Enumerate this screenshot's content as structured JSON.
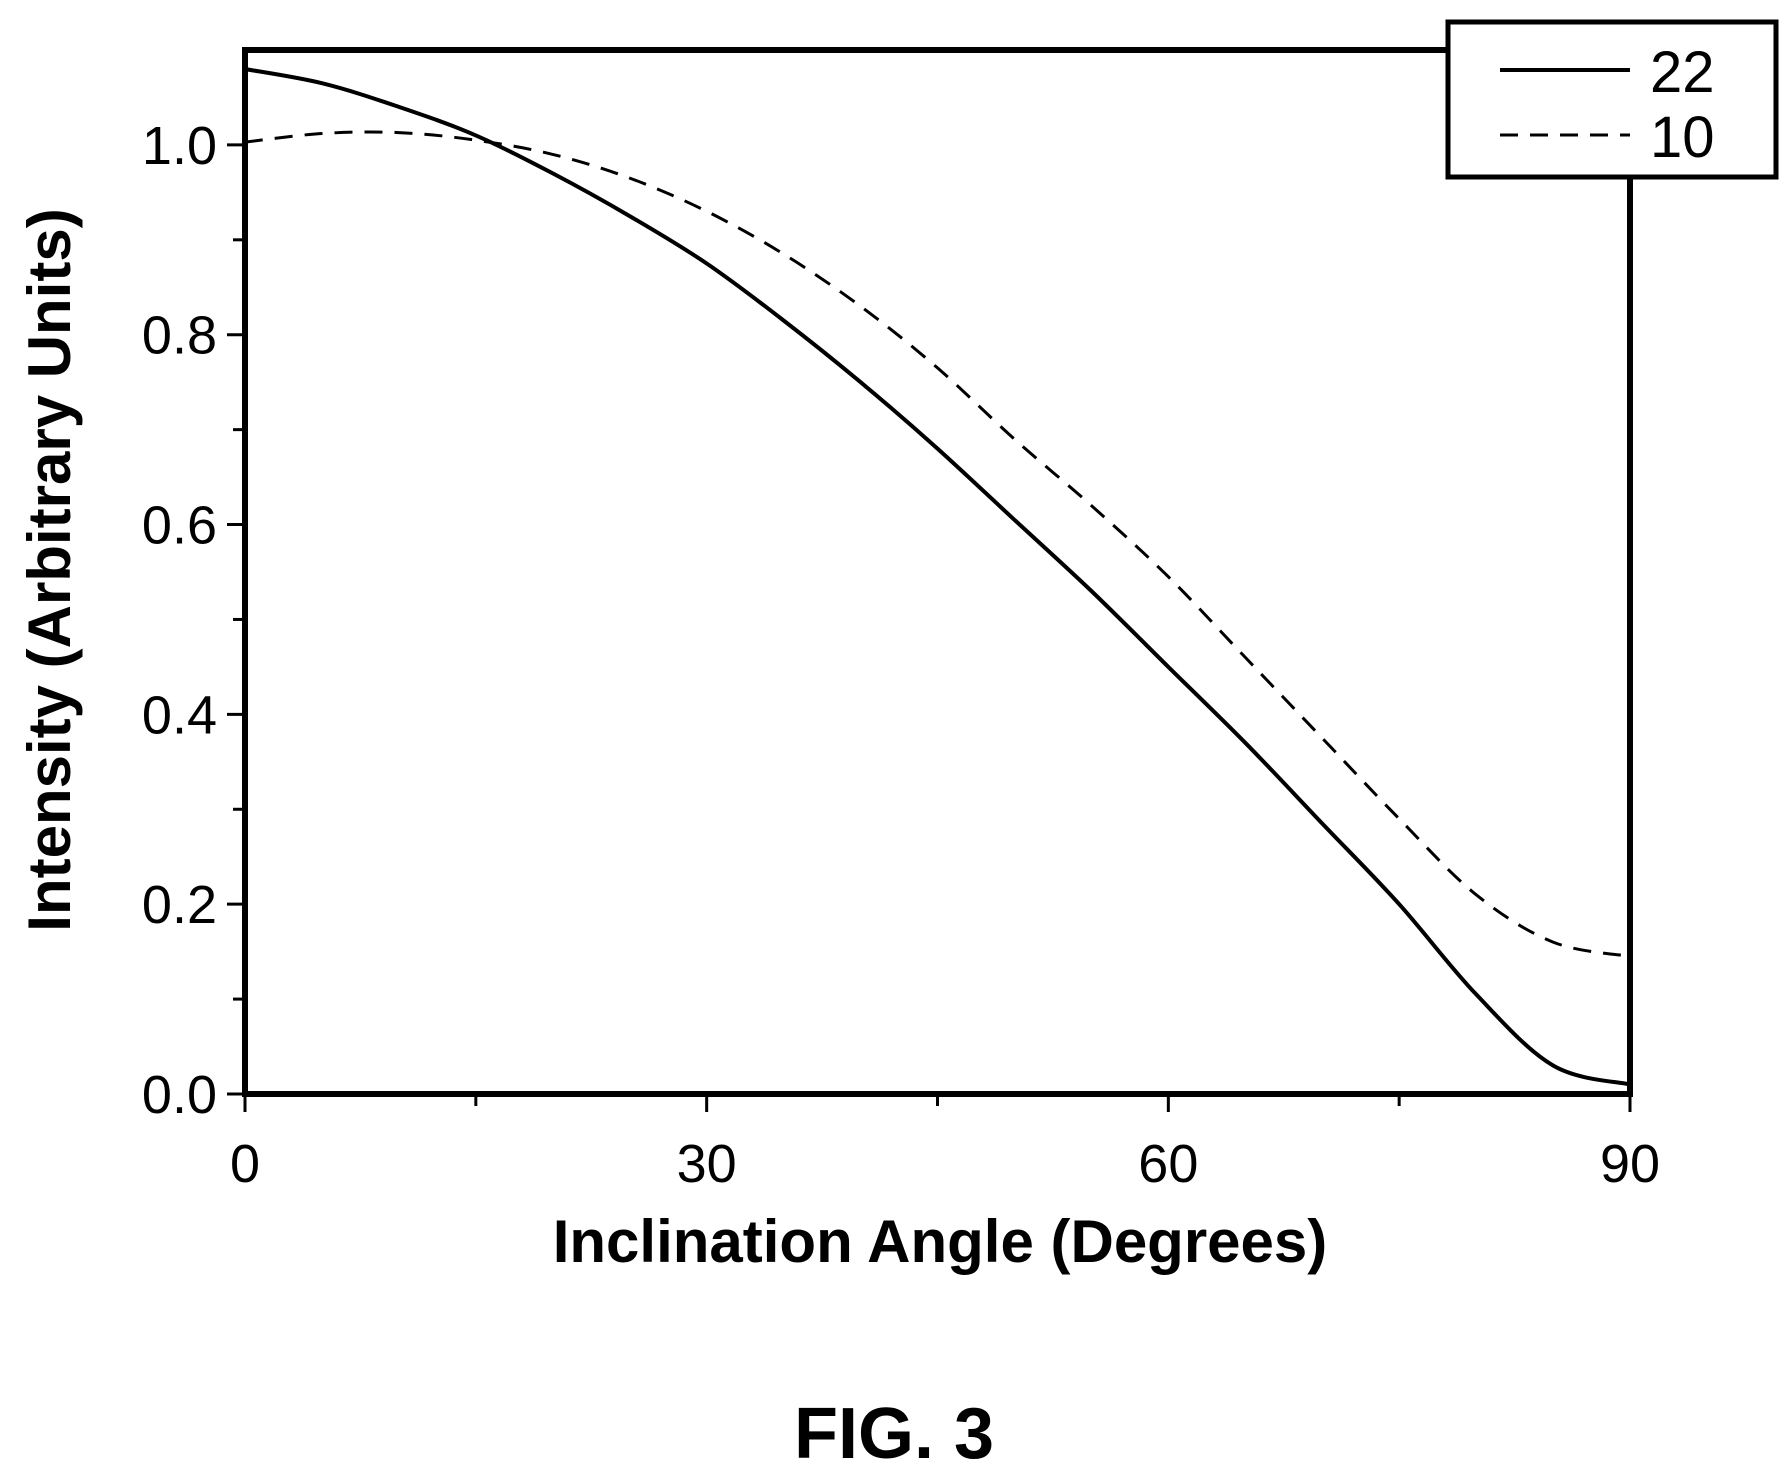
{
  "chart_data": {
    "type": "line",
    "title": "",
    "xlabel": "Inclination Angle (Degrees)",
    "ylabel": "Intensity (Arbitrary Units)",
    "xlim": [
      0,
      90
    ],
    "ylim": [
      0,
      1.1
    ],
    "x_ticks": [
      0,
      30,
      60,
      90
    ],
    "x_tick_labels": [
      "0",
      "30",
      "60",
      "90"
    ],
    "x_minor_ticks": [
      15,
      45,
      75
    ],
    "y_ticks": [
      0,
      0.2,
      0.4,
      0.6,
      0.8,
      1.0
    ],
    "y_tick_labels": [
      "0.0",
      "0.2",
      "0.4",
      "0.6",
      "0.8",
      "1.0"
    ],
    "y_minor_ticks": [
      0.1,
      0.3,
      0.5,
      0.7,
      0.9
    ],
    "grid": false,
    "legend_position": "top-right",
    "series": [
      {
        "name": "22",
        "line_style": "solid",
        "x": [
          0,
          5,
          10,
          15,
          20,
          25,
          30,
          35,
          40,
          45,
          50,
          55,
          60,
          65,
          70,
          75,
          80,
          85,
          90
        ],
        "y": [
          1.08,
          1.065,
          1.04,
          1.01,
          0.97,
          0.925,
          0.875,
          0.815,
          0.75,
          0.68,
          0.605,
          0.53,
          0.45,
          0.37,
          0.285,
          0.2,
          0.105,
          0.03,
          0.01
        ]
      },
      {
        "name": "10",
        "line_style": "dashed",
        "x": [
          0,
          5,
          10,
          15,
          20,
          25,
          30,
          35,
          40,
          45,
          50,
          55,
          60,
          65,
          70,
          75,
          80,
          85,
          90
        ],
        "y": [
          1.003,
          1.012,
          1.013,
          1.005,
          0.99,
          0.965,
          0.93,
          0.885,
          0.83,
          0.765,
          0.69,
          0.62,
          0.545,
          0.46,
          0.375,
          0.29,
          0.21,
          0.16,
          0.145
        ]
      }
    ]
  },
  "figure": {
    "caption": "FIG. 3"
  }
}
